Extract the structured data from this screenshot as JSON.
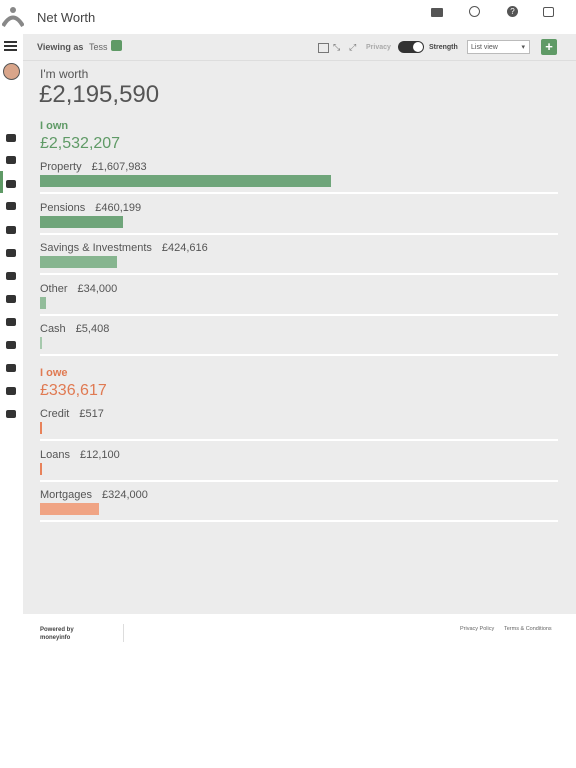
{
  "header": {
    "title": "Net Worth"
  },
  "toolbar": {
    "viewing_as": "Viewing as",
    "user": "Tess",
    "privacy": "Privacy",
    "strength": "Strength",
    "view": "List view"
  },
  "summary": {
    "label": "I'm worth",
    "value": "£2,195,590"
  },
  "own": {
    "label": "I own",
    "total": "£2,532,207",
    "items": [
      {
        "name": "Property",
        "value": 1607983,
        "label": "£1,607,983"
      },
      {
        "name": "Pensions",
        "value": 460199,
        "label": "£460,199"
      },
      {
        "name": "Savings & Investments",
        "value": 424616,
        "label": "£424,616"
      },
      {
        "name": "Other",
        "value": 34000,
        "label": "£34,000"
      },
      {
        "name": "Cash",
        "value": 5408,
        "label": "£5,408"
      }
    ]
  },
  "owe": {
    "label": "I owe",
    "total": "£336,617",
    "items": [
      {
        "name": "Credit",
        "value": 517,
        "label": "£517"
      },
      {
        "name": "Loans",
        "value": 12100,
        "label": "£12,100"
      },
      {
        "name": "Mortgages",
        "value": 324000,
        "label": "£324,000"
      }
    ]
  },
  "footer": {
    "powered_by": "Powered by",
    "brand": "moneyinfo",
    "links": [
      "Privacy Policy",
      "Terms & Conditions"
    ]
  }
}
